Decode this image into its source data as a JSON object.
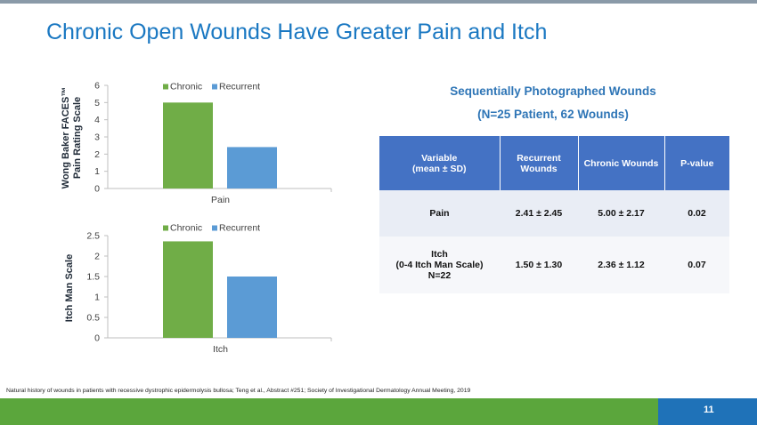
{
  "slide": {
    "title": "Chronic Open Wounds Have Greater Pain and Itch",
    "page_number": "11",
    "footnote": "Natural history of wounds in patients with recessive dystrophic epidermolysis bullosa; Teng et al., Abstract #251; Society of Investigational Dermatology Annual Meeting, 2019"
  },
  "colors": {
    "title": "#1a78c2",
    "chronic": "#70ad47",
    "recurrent": "#5b9bd5",
    "table_header": "#4472c4",
    "bottom_bar": "#5ba63c",
    "page_box": "#1f72b8"
  },
  "chart_data": [
    {
      "type": "bar",
      "categories": [
        "Pain"
      ],
      "series": [
        {
          "name": "Chronic",
          "values": [
            5.0
          ]
        },
        {
          "name": "Recurrent",
          "values": [
            2.41
          ]
        }
      ],
      "ylabel": "Wong Baker FACES™ Pain Rating Scale",
      "ylabel_lines": [
        "Wong Baker FACES™",
        "Pain Rating Scale"
      ],
      "ylim": [
        0,
        6
      ],
      "yticks": [
        "0",
        "1",
        "2",
        "3",
        "4",
        "5",
        "6"
      ],
      "legend": "top",
      "grid": false
    },
    {
      "type": "bar",
      "categories": [
        "Itch"
      ],
      "series": [
        {
          "name": "Chronic",
          "values": [
            2.36
          ]
        },
        {
          "name": "Recurrent",
          "values": [
            1.5
          ]
        }
      ],
      "ylabel": "Itch Man Scale",
      "ylabel_lines": [
        "Itch Man Scale"
      ],
      "ylim": [
        0,
        2.5
      ],
      "yticks": [
        "0",
        "0.5",
        "1",
        "1.5",
        "2",
        "2.5"
      ],
      "legend": "top",
      "grid": false
    }
  ],
  "table": {
    "subtitle1": "Sequentially Photographed Wounds",
    "subtitle2": "(N=25 Patient, 62 Wounds)",
    "headers": {
      "variable_line1": "Variable",
      "variable_line2": "(mean ± SD)",
      "recurrent_line1": "Recurrent",
      "recurrent_line2": "Wounds",
      "chronic": "Chronic Wounds",
      "pvalue": "P-value"
    },
    "rows": [
      {
        "variable_line1": "Pain",
        "variable_line2": "",
        "variable_line3": "",
        "recurrent": "2.41 ± 2.45",
        "chronic": "5.00 ± 2.17",
        "pvalue": "0.02"
      },
      {
        "variable_line1": "Itch",
        "variable_line2": "(0-4 Itch Man Scale)",
        "variable_line3": "N=22",
        "recurrent": "1.50 ± 1.30",
        "chronic": "2.36 ± 1.12",
        "pvalue": "0.07"
      }
    ]
  }
}
